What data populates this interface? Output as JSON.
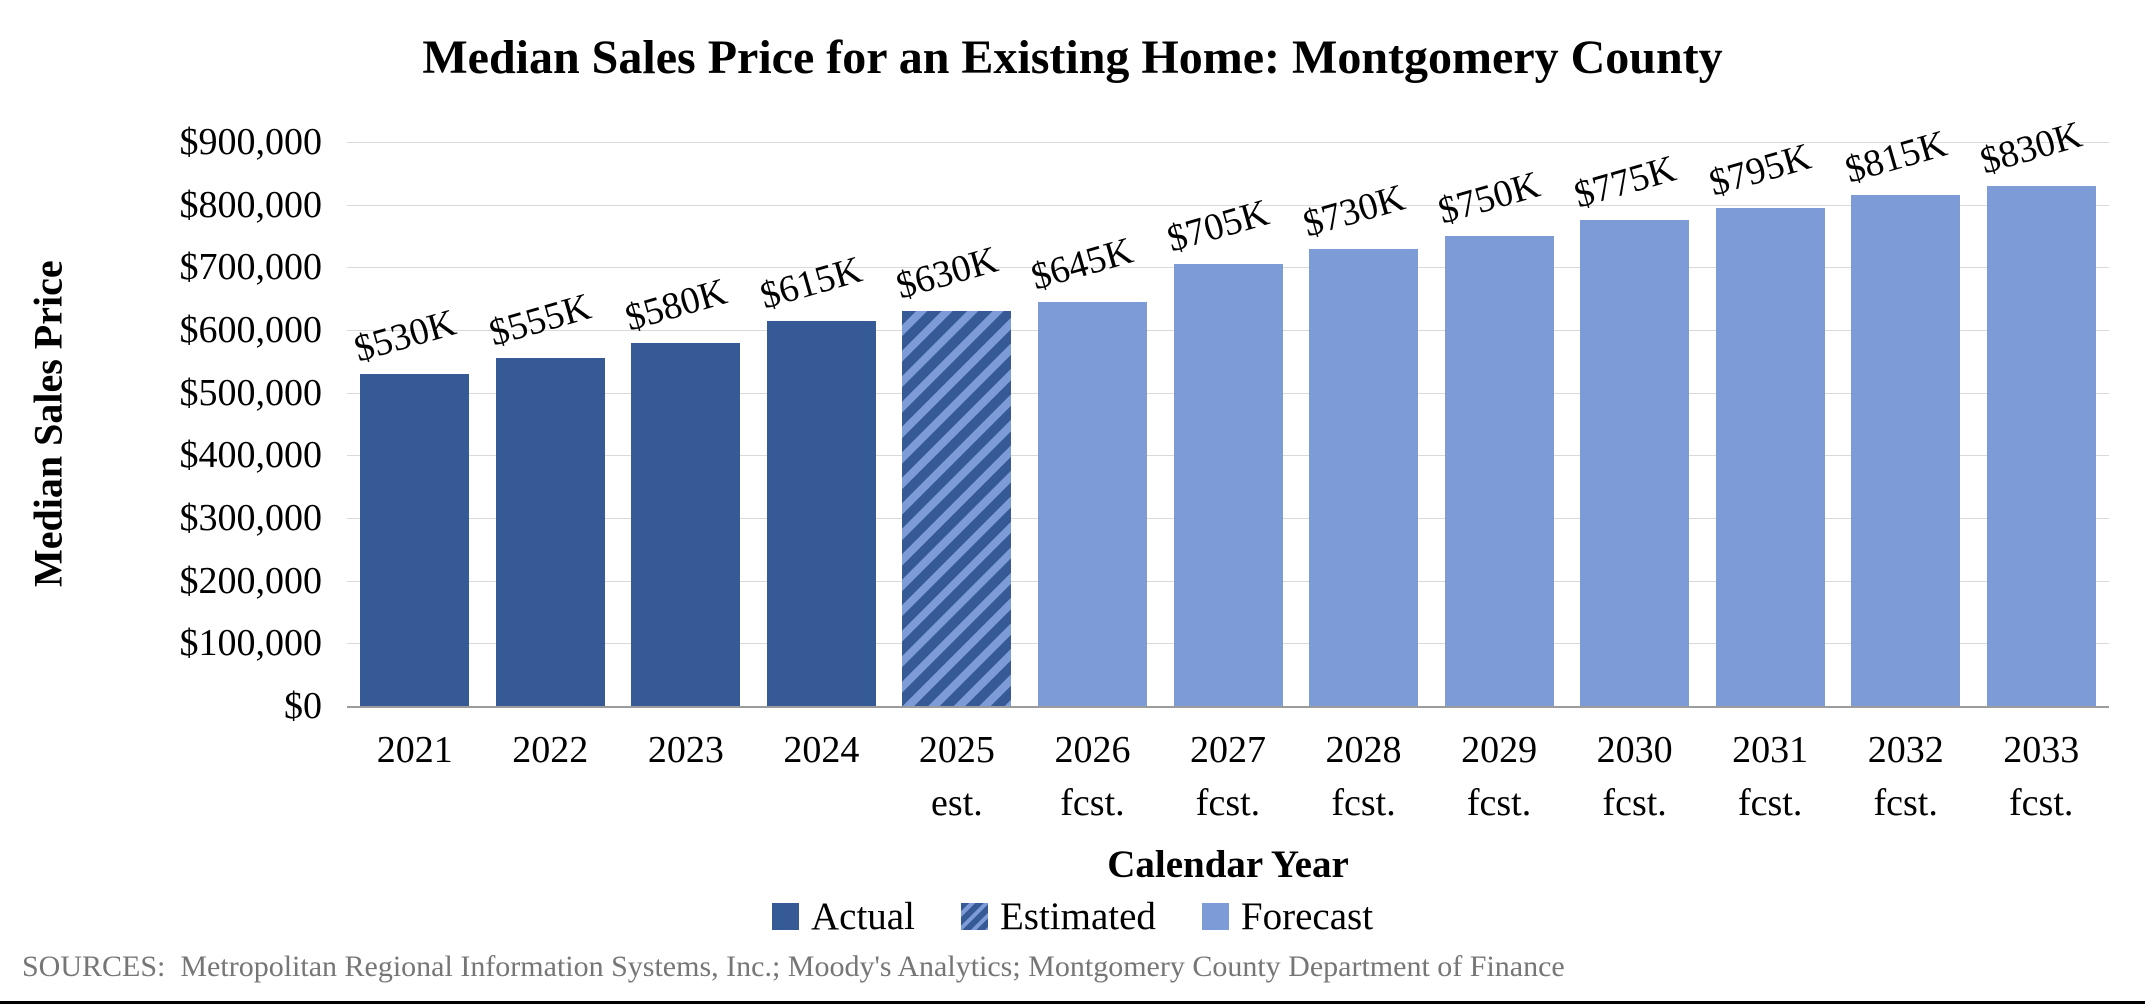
{
  "title": "Median Sales Price for an Existing Home: Montgomery County",
  "footer": {
    "sources": "SOURCES:  Metropolitan Regional Information Systems, Inc.; Moody's Analytics; Montgomery County Department of Finance"
  },
  "colors": {
    "actual": "#365A96",
    "forecast": "#7D9BD6",
    "estimated_background": "#365A96",
    "estimated_stripe": "#7D9BD6",
    "gridline": "#D9D9D9",
    "axis_line": "#9C9C9C",
    "sources_text": "#767676",
    "text": "#000000"
  },
  "legend": [
    {
      "label": "Actual",
      "swatch": "actual"
    },
    {
      "label": "Estimated",
      "swatch": "estimated"
    },
    {
      "label": "Forecast",
      "swatch": "forecast"
    }
  ],
  "chart_data": {
    "type": "bar",
    "title": "Median Sales Price for an Existing Home: Montgomery County",
    "xlabel": "Calendar Year",
    "ylabel": "Median Sales Price",
    "ylim": [
      0,
      900000
    ],
    "grid": "horizontal",
    "legend_position": "bottom",
    "y_ticks": [
      {
        "label": "$0",
        "value": 0
      },
      {
        "label": "$100,000",
        "value": 100000
      },
      {
        "label": "$200,000",
        "value": 200000
      },
      {
        "label": "$300,000",
        "value": 300000
      },
      {
        "label": "$400,000",
        "value": 400000
      },
      {
        "label": "$500,000",
        "value": 500000
      },
      {
        "label": "$600,000",
        "value": 600000
      },
      {
        "label": "$700,000",
        "value": 700000
      },
      {
        "label": "$800,000",
        "value": 800000
      },
      {
        "label": "$900,000",
        "value": 900000
      }
    ],
    "categories": [
      {
        "year": "2021",
        "qualifier": "",
        "value": 530000,
        "data_label": "$530K",
        "series": "Actual"
      },
      {
        "year": "2022",
        "qualifier": "",
        "value": 555000,
        "data_label": "$555K",
        "series": "Actual"
      },
      {
        "year": "2023",
        "qualifier": "",
        "value": 580000,
        "data_label": "$580K",
        "series": "Actual"
      },
      {
        "year": "2024",
        "qualifier": "",
        "value": 615000,
        "data_label": "$615K",
        "series": "Actual"
      },
      {
        "year": "2025",
        "qualifier": "est.",
        "value": 630000,
        "data_label": "$630K",
        "series": "Estimated"
      },
      {
        "year": "2026",
        "qualifier": "fcst.",
        "value": 645000,
        "data_label": "$645K",
        "series": "Forecast"
      },
      {
        "year": "2027",
        "qualifier": "fcst.",
        "value": 705000,
        "data_label": "$705K",
        "series": "Forecast"
      },
      {
        "year": "2028",
        "qualifier": "fcst.",
        "value": 730000,
        "data_label": "$730K",
        "series": "Forecast"
      },
      {
        "year": "2029",
        "qualifier": "fcst.",
        "value": 750000,
        "data_label": "$750K",
        "series": "Forecast"
      },
      {
        "year": "2030",
        "qualifier": "fcst.",
        "value": 775000,
        "data_label": "$775K",
        "series": "Forecast"
      },
      {
        "year": "2031",
        "qualifier": "fcst.",
        "value": 795000,
        "data_label": "$795K",
        "series": "Forecast"
      },
      {
        "year": "2032",
        "qualifier": "fcst.",
        "value": 815000,
        "data_label": "$815K",
        "series": "Forecast"
      },
      {
        "year": "2033",
        "qualifier": "fcst.",
        "value": 830000,
        "data_label": "$830K",
        "series": "Forecast"
      }
    ]
  }
}
